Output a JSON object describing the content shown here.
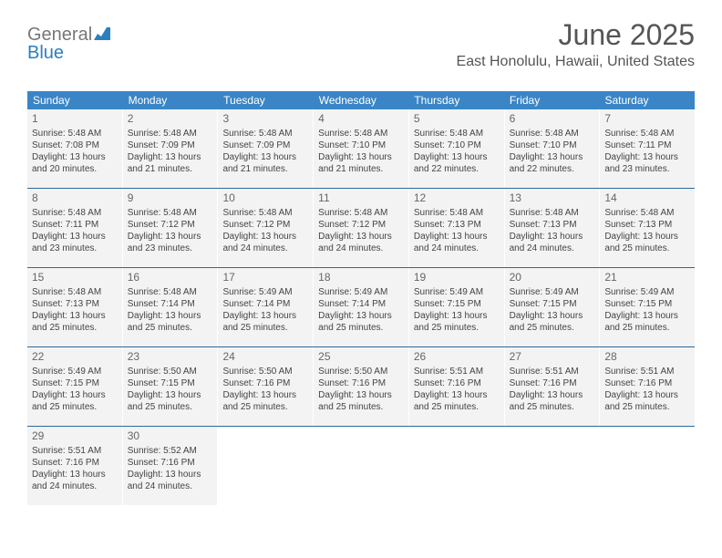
{
  "logo": {
    "word1": "General",
    "word2": "Blue"
  },
  "header": {
    "month_year": "June 2025",
    "location": "East Honolulu, Hawaii, United States"
  },
  "calendar": {
    "header_bg": "#3a85c6",
    "cell_bg": "#f3f3f3",
    "rule_color": "#2a6ba0",
    "daynames": [
      "Sunday",
      "Monday",
      "Tuesday",
      "Wednesday",
      "Thursday",
      "Friday",
      "Saturday"
    ],
    "weeks": [
      [
        {
          "n": "1",
          "sr": "Sunrise: 5:48 AM",
          "ss": "Sunset: 7:08 PM",
          "dl": "Daylight: 13 hours and 20 minutes."
        },
        {
          "n": "2",
          "sr": "Sunrise: 5:48 AM",
          "ss": "Sunset: 7:09 PM",
          "dl": "Daylight: 13 hours and 21 minutes."
        },
        {
          "n": "3",
          "sr": "Sunrise: 5:48 AM",
          "ss": "Sunset: 7:09 PM",
          "dl": "Daylight: 13 hours and 21 minutes."
        },
        {
          "n": "4",
          "sr": "Sunrise: 5:48 AM",
          "ss": "Sunset: 7:10 PM",
          "dl": "Daylight: 13 hours and 21 minutes."
        },
        {
          "n": "5",
          "sr": "Sunrise: 5:48 AM",
          "ss": "Sunset: 7:10 PM",
          "dl": "Daylight: 13 hours and 22 minutes."
        },
        {
          "n": "6",
          "sr": "Sunrise: 5:48 AM",
          "ss": "Sunset: 7:10 PM",
          "dl": "Daylight: 13 hours and 22 minutes."
        },
        {
          "n": "7",
          "sr": "Sunrise: 5:48 AM",
          "ss": "Sunset: 7:11 PM",
          "dl": "Daylight: 13 hours and 23 minutes."
        }
      ],
      [
        {
          "n": "8",
          "sr": "Sunrise: 5:48 AM",
          "ss": "Sunset: 7:11 PM",
          "dl": "Daylight: 13 hours and 23 minutes."
        },
        {
          "n": "9",
          "sr": "Sunrise: 5:48 AM",
          "ss": "Sunset: 7:12 PM",
          "dl": "Daylight: 13 hours and 23 minutes."
        },
        {
          "n": "10",
          "sr": "Sunrise: 5:48 AM",
          "ss": "Sunset: 7:12 PM",
          "dl": "Daylight: 13 hours and 24 minutes."
        },
        {
          "n": "11",
          "sr": "Sunrise: 5:48 AM",
          "ss": "Sunset: 7:12 PM",
          "dl": "Daylight: 13 hours and 24 minutes."
        },
        {
          "n": "12",
          "sr": "Sunrise: 5:48 AM",
          "ss": "Sunset: 7:13 PM",
          "dl": "Daylight: 13 hours and 24 minutes."
        },
        {
          "n": "13",
          "sr": "Sunrise: 5:48 AM",
          "ss": "Sunset: 7:13 PM",
          "dl": "Daylight: 13 hours and 24 minutes."
        },
        {
          "n": "14",
          "sr": "Sunrise: 5:48 AM",
          "ss": "Sunset: 7:13 PM",
          "dl": "Daylight: 13 hours and 25 minutes."
        }
      ],
      [
        {
          "n": "15",
          "sr": "Sunrise: 5:48 AM",
          "ss": "Sunset: 7:13 PM",
          "dl": "Daylight: 13 hours and 25 minutes."
        },
        {
          "n": "16",
          "sr": "Sunrise: 5:48 AM",
          "ss": "Sunset: 7:14 PM",
          "dl": "Daylight: 13 hours and 25 minutes."
        },
        {
          "n": "17",
          "sr": "Sunrise: 5:49 AM",
          "ss": "Sunset: 7:14 PM",
          "dl": "Daylight: 13 hours and 25 minutes."
        },
        {
          "n": "18",
          "sr": "Sunrise: 5:49 AM",
          "ss": "Sunset: 7:14 PM",
          "dl": "Daylight: 13 hours and 25 minutes."
        },
        {
          "n": "19",
          "sr": "Sunrise: 5:49 AM",
          "ss": "Sunset: 7:15 PM",
          "dl": "Daylight: 13 hours and 25 minutes."
        },
        {
          "n": "20",
          "sr": "Sunrise: 5:49 AM",
          "ss": "Sunset: 7:15 PM",
          "dl": "Daylight: 13 hours and 25 minutes."
        },
        {
          "n": "21",
          "sr": "Sunrise: 5:49 AM",
          "ss": "Sunset: 7:15 PM",
          "dl": "Daylight: 13 hours and 25 minutes."
        }
      ],
      [
        {
          "n": "22",
          "sr": "Sunrise: 5:49 AM",
          "ss": "Sunset: 7:15 PM",
          "dl": "Daylight: 13 hours and 25 minutes."
        },
        {
          "n": "23",
          "sr": "Sunrise: 5:50 AM",
          "ss": "Sunset: 7:15 PM",
          "dl": "Daylight: 13 hours and 25 minutes."
        },
        {
          "n": "24",
          "sr": "Sunrise: 5:50 AM",
          "ss": "Sunset: 7:16 PM",
          "dl": "Daylight: 13 hours and 25 minutes."
        },
        {
          "n": "25",
          "sr": "Sunrise: 5:50 AM",
          "ss": "Sunset: 7:16 PM",
          "dl": "Daylight: 13 hours and 25 minutes."
        },
        {
          "n": "26",
          "sr": "Sunrise: 5:51 AM",
          "ss": "Sunset: 7:16 PM",
          "dl": "Daylight: 13 hours and 25 minutes."
        },
        {
          "n": "27",
          "sr": "Sunrise: 5:51 AM",
          "ss": "Sunset: 7:16 PM",
          "dl": "Daylight: 13 hours and 25 minutes."
        },
        {
          "n": "28",
          "sr": "Sunrise: 5:51 AM",
          "ss": "Sunset: 7:16 PM",
          "dl": "Daylight: 13 hours and 25 minutes."
        }
      ],
      [
        {
          "n": "29",
          "sr": "Sunrise: 5:51 AM",
          "ss": "Sunset: 7:16 PM",
          "dl": "Daylight: 13 hours and 24 minutes."
        },
        {
          "n": "30",
          "sr": "Sunrise: 5:52 AM",
          "ss": "Sunset: 7:16 PM",
          "dl": "Daylight: 13 hours and 24 minutes."
        },
        null,
        null,
        null,
        null,
        null
      ]
    ]
  }
}
